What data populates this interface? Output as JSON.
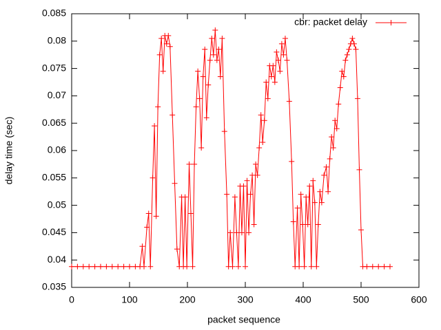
{
  "chart_data": {
    "type": "line",
    "xlabel": "packet sequence",
    "ylabel": "delay time (sec)",
    "xlim": [
      0,
      600
    ],
    "xticks": [
      0,
      100,
      200,
      300,
      400,
      500,
      600
    ],
    "ylim": [
      0.035,
      0.085
    ],
    "yticks": [
      0.035,
      0.04,
      0.045,
      0.05,
      0.055,
      0.06,
      0.065,
      0.07,
      0.075,
      0.08,
      0.085
    ],
    "legend": "top right",
    "x": [
      0,
      10,
      20,
      30,
      40,
      50,
      60,
      70,
      80,
      90,
      100,
      110,
      118,
      122,
      125,
      130,
      133,
      136,
      140,
      143,
      146,
      149,
      152,
      155,
      158,
      161,
      164,
      167,
      170,
      174,
      178,
      182,
      186,
      190,
      193,
      196,
      199,
      203,
      206,
      209,
      212,
      215,
      218,
      221,
      224,
      227,
      230,
      233,
      236,
      239,
      242,
      245,
      248,
      251,
      254,
      257,
      260,
      264,
      268,
      271,
      274,
      278,
      282,
      285,
      288,
      291,
      294,
      297,
      300,
      303,
      306,
      309,
      312,
      315,
      318,
      321,
      324,
      327,
      330,
      333,
      336,
      339,
      342,
      345,
      348,
      351,
      354,
      357,
      360,
      363,
      366,
      369,
      372,
      376,
      380,
      383,
      386,
      390,
      393,
      396,
      399,
      402,
      405,
      408,
      411,
      414,
      417,
      420,
      423,
      426,
      429,
      432,
      436,
      440,
      443,
      446,
      449,
      452,
      455,
      458,
      461,
      464,
      467,
      470,
      473,
      476,
      479,
      482,
      485,
      488,
      491,
      494,
      497,
      500,
      503,
      510,
      520,
      530,
      540,
      550
    ],
    "series": [
      {
        "name": "cbr: packet delay",
        "color": "#ff0000",
        "values": [
          0.0388,
          0.0388,
          0.0388,
          0.0388,
          0.0388,
          0.0388,
          0.0388,
          0.0388,
          0.0388,
          0.0388,
          0.0388,
          0.0388,
          0.0388,
          0.0425,
          0.0388,
          0.046,
          0.0485,
          0.0388,
          0.055,
          0.0645,
          0.048,
          0.068,
          0.0775,
          0.0805,
          0.0745,
          0.081,
          0.0795,
          0.081,
          0.079,
          0.0665,
          0.054,
          0.042,
          0.0388,
          0.0515,
          0.0388,
          0.0515,
          0.0388,
          0.0575,
          0.0485,
          0.0388,
          0.0575,
          0.068,
          0.0745,
          0.0695,
          0.0605,
          0.0735,
          0.0785,
          0.066,
          0.072,
          0.0765,
          0.0805,
          0.0775,
          0.082,
          0.0765,
          0.0785,
          0.0735,
          0.0805,
          0.0635,
          0.052,
          0.0388,
          0.045,
          0.0388,
          0.0515,
          0.045,
          0.0388,
          0.0535,
          0.045,
          0.0535,
          0.0388,
          0.0545,
          0.045,
          0.052,
          0.0555,
          0.0465,
          0.0575,
          0.0555,
          0.0605,
          0.0665,
          0.0615,
          0.0655,
          0.0725,
          0.0695,
          0.0755,
          0.0735,
          0.0755,
          0.0725,
          0.078,
          0.0765,
          0.0745,
          0.0795,
          0.0775,
          0.0805,
          0.0765,
          0.069,
          0.058,
          0.047,
          0.0388,
          0.0495,
          0.0388,
          0.052,
          0.0465,
          0.0388,
          0.0515,
          0.0465,
          0.0535,
          0.0388,
          0.0545,
          0.0505,
          0.0388,
          0.0465,
          0.0525,
          0.0505,
          0.0555,
          0.057,
          0.0525,
          0.0585,
          0.0625,
          0.0605,
          0.0655,
          0.064,
          0.0685,
          0.0715,
          0.0745,
          0.0735,
          0.0765,
          0.0775,
          0.0785,
          0.0795,
          0.0805,
          0.0795,
          0.0785,
          0.0695,
          0.0565,
          0.0455,
          0.0388,
          0.0388,
          0.0388,
          0.0388,
          0.0388,
          0.0388
        ]
      }
    ]
  }
}
